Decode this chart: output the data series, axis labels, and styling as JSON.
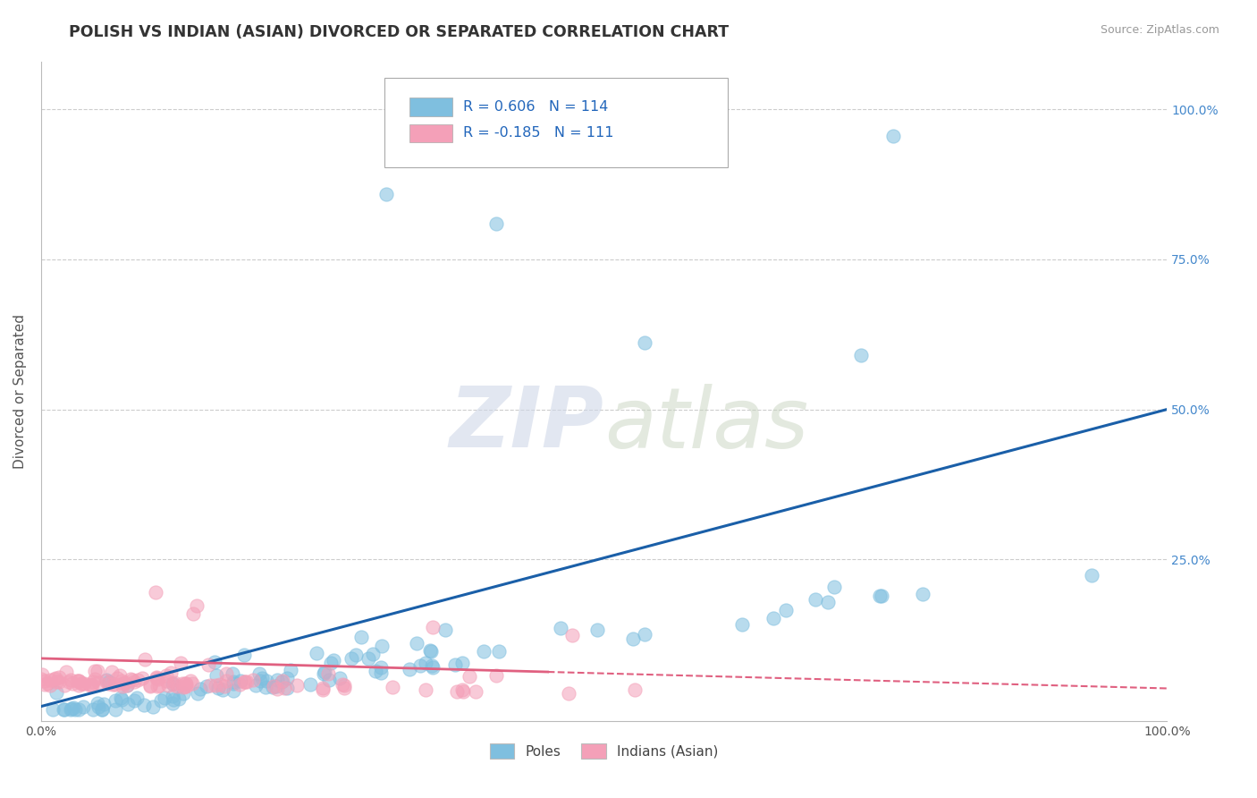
{
  "title": "POLISH VS INDIAN (ASIAN) DIVORCED OR SEPARATED CORRELATION CHART",
  "source": "Source: ZipAtlas.com",
  "ylabel": "Divorced or Separated",
  "xlabel": "",
  "watermark_zip": "ZIP",
  "watermark_atlas": "atlas",
  "legend_1_label": "R = 0.606   N = 114",
  "legend_2_label": "R = -0.185   N = 111",
  "legend_1_bottom": "Poles",
  "legend_2_bottom": "Indians (Asian)",
  "R1": 0.606,
  "N1": 114,
  "R2": -0.185,
  "N2": 111,
  "blue_color": "#7fbfdf",
  "pink_color": "#f4a0b8",
  "blue_line_color": "#1a5fa8",
  "pink_line_color": "#e06080",
  "xmin": 0.0,
  "xmax": 1.0,
  "ymin": -0.02,
  "ymax": 1.08,
  "seed1": 42,
  "seed2": 77
}
